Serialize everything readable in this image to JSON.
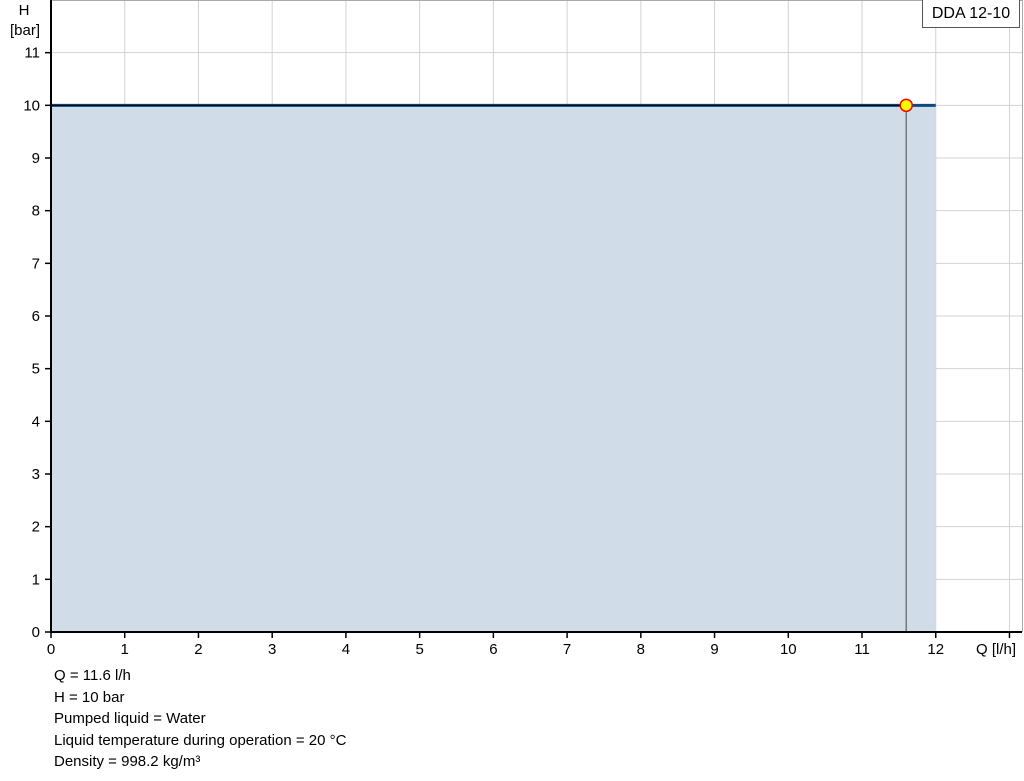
{
  "chart_data": {
    "type": "area",
    "title": "",
    "xlabel": "Q [l/h]",
    "ylabel_line1": "H",
    "ylabel_line2": "[bar]",
    "xlim": [
      0,
      13.17
    ],
    "ylim": [
      0,
      12
    ],
    "x_ticks": [
      0,
      1,
      2,
      3,
      4,
      5,
      6,
      7,
      8,
      9,
      10,
      11,
      12,
      13
    ],
    "x_tick_labels": [
      "0",
      "1",
      "2",
      "3",
      "4",
      "5",
      "6",
      "7",
      "8",
      "9",
      "10",
      "11",
      "12",
      ""
    ],
    "y_ticks": [
      0,
      1,
      2,
      3,
      4,
      5,
      6,
      7,
      8,
      9,
      10,
      11
    ],
    "y_tick_labels": [
      "0",
      "1",
      "2",
      "3",
      "4",
      "5",
      "6",
      "7",
      "8",
      "9",
      "10",
      "11"
    ],
    "grid": true,
    "legend": {
      "label": "DDA 12-10",
      "placement": "top-right"
    },
    "series": [
      {
        "name": "DDA 12-10",
        "x": [
          0,
          12
        ],
        "y": [
          10,
          10
        ]
      }
    ],
    "duty_point": {
      "x": 11.6,
      "y": 10
    },
    "colors": {
      "fill": "#d0dce8",
      "line": "#0d4a7e",
      "point_fill": "#ffff00",
      "point_stroke": "#ff0000",
      "grid": "#d3d3d3"
    }
  },
  "info": {
    "q": "Q = 11.6 l/h",
    "h": "H = 10 bar",
    "liquid": "Pumped liquid = Water",
    "temp": "Liquid temperature during operation = 20 °C",
    "density": "Density = 998.2 kg/m³"
  }
}
